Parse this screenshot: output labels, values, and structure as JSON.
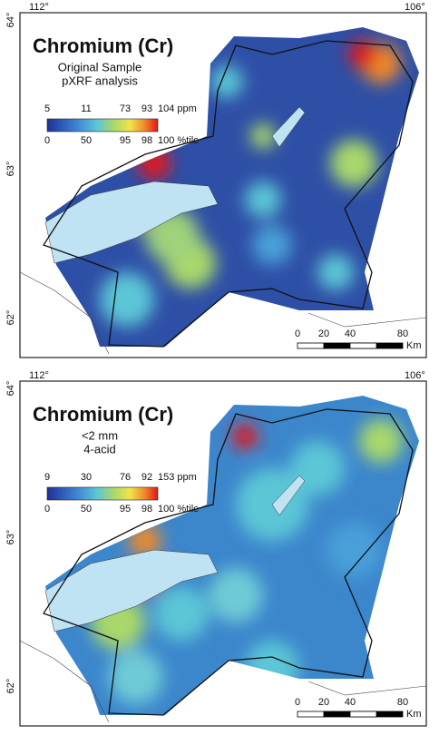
{
  "panels": [
    {
      "corner_lat_top": "64°",
      "lon_left": "112°",
      "lon_right": "106°",
      "lat_mid": "63°",
      "lat_bottom": "62°",
      "title": "Chromium (Cr)",
      "subtitle": [
        "Original Sample",
        "pXRF analysis"
      ],
      "legend_ppm": [
        "5",
        "11",
        "73",
        "93",
        "104 ppm"
      ],
      "legend_percentile": [
        "0",
        "50",
        "95",
        "98",
        "100 %tile"
      ],
      "scale_labels": [
        "0",
        "20",
        "40",
        "80"
      ],
      "scale_unit": "Km"
    },
    {
      "corner_lat_top": "64°",
      "lon_left": "112°",
      "lon_right": "106°",
      "lat_mid": "63°",
      "lat_bottom": "62°",
      "title": "Chromium (Cr)",
      "subtitle": [
        "<2 mm",
        "4-acid"
      ],
      "legend_ppm": [
        "9",
        "30",
        "76",
        "92",
        "153 ppm"
      ],
      "legend_percentile": [
        "0",
        "50",
        "95",
        "98",
        "100 %tile"
      ],
      "scale_labels": [
        "0",
        "20",
        "40",
        "80"
      ],
      "scale_unit": "Km"
    }
  ]
}
